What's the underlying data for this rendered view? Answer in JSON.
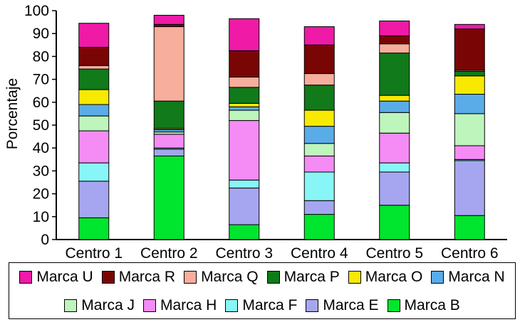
{
  "chart_data": {
    "type": "bar",
    "stacked": true,
    "ylabel": "Porcentaje",
    "ylim": [
      0,
      100
    ],
    "yticks": [
      0,
      10,
      20,
      30,
      40,
      50,
      60,
      70,
      80,
      90,
      100
    ],
    "categories": [
      "Centro 1",
      "Centro 2",
      "Centro 3",
      "Centro 4",
      "Centro 5",
      "Centro 6"
    ],
    "legend_placement": "bottom",
    "series": [
      {
        "name": "Marca B",
        "color": "#00e52e",
        "values": [
          9.5,
          36.5,
          6.5,
          11,
          15,
          10.5
        ]
      },
      {
        "name": "Marca E",
        "color": "#a6a6f0",
        "values": [
          16,
          3,
          16,
          6,
          14.5,
          24
        ]
      },
      {
        "name": "Marca F",
        "color": "#88f6f6",
        "values": [
          8,
          0.5,
          3.5,
          12.5,
          4,
          0.5
        ]
      },
      {
        "name": "Marca H",
        "color": "#f58cf5",
        "values": [
          14,
          6,
          26,
          7,
          13,
          6
        ]
      },
      {
        "name": "Marca J",
        "color": "#bdf5bd",
        "values": [
          6.5,
          1,
          4.5,
          5.5,
          9,
          14
        ]
      },
      {
        "name": "Marca N",
        "color": "#5aace8",
        "values": [
          5,
          1,
          1.5,
          7.5,
          5,
          8.5
        ]
      },
      {
        "name": "Marca O",
        "color": "#f8e900",
        "values": [
          6.5,
          0.5,
          1.5,
          7,
          2.5,
          8
        ]
      },
      {
        "name": "Marca P",
        "color": "#117a1a",
        "values": [
          9,
          12,
          7,
          11,
          18.5,
          2
        ]
      },
      {
        "name": "Marca Q",
        "color": "#f7ae9c",
        "values": [
          1.5,
          32.5,
          4.5,
          5,
          4,
          0.5
        ]
      },
      {
        "name": "Marca R",
        "color": "#7a0505",
        "values": [
          8,
          1,
          11.5,
          12.5,
          3.5,
          18
        ]
      },
      {
        "name": "Marca U",
        "color": "#ef1aa6",
        "values": [
          10.5,
          4,
          14,
          8,
          6.5,
          2
        ]
      }
    ],
    "legend_rows": [
      [
        "Marca U",
        "Marca R",
        "Marca Q",
        "Marca P",
        "Marca O",
        "Marca N"
      ],
      [
        "Marca J",
        "Marca H",
        "Marca F",
        "Marca E",
        "Marca B"
      ]
    ]
  }
}
